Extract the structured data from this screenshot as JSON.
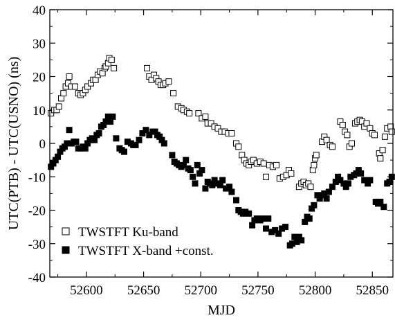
{
  "chart_data": {
    "type": "scatter",
    "xlabel": "MJD",
    "ylabel": "UTC(PTB) - UTC(USNO) (ns)",
    "xlim": [
      52568,
      52868
    ],
    "ylim": [
      -40,
      40
    ],
    "x_ticks": [
      52600,
      52650,
      52700,
      52750,
      52800,
      52850
    ],
    "x_tick_labels": [
      "52600",
      "52650",
      "52700",
      "52750",
      "52800",
      "52850"
    ],
    "y_ticks": [
      -40,
      -30,
      -20,
      -10,
      0,
      10,
      20,
      30,
      40
    ],
    "y_tick_labels": [
      "-40",
      "-30",
      "-20",
      "-10",
      "0",
      "10",
      "20",
      "30",
      "40"
    ],
    "grid": false,
    "legend_position": "bottom-left",
    "series": [
      {
        "name": "TWSTFT Ku-band",
        "marker": "open-square",
        "color": "#000000",
        "points": [
          [
            52569,
            9
          ],
          [
            52572,
            10
          ],
          [
            52574,
            10
          ],
          [
            52576,
            11
          ],
          [
            52578,
            13.5
          ],
          [
            52580,
            15
          ],
          [
            52582,
            17
          ],
          [
            52584,
            18
          ],
          [
            52585,
            20
          ],
          [
            52587,
            17
          ],
          [
            52590,
            17
          ],
          [
            52593,
            15
          ],
          [
            52595,
            14.5
          ],
          [
            52597,
            15
          ],
          [
            52599,
            16
          ],
          [
            52601,
            17
          ],
          [
            52604,
            18
          ],
          [
            52606,
            19
          ],
          [
            52608,
            19
          ],
          [
            52610,
            20.5
          ],
          [
            52612,
            21.5
          ],
          [
            52614,
            21
          ],
          [
            52616,
            22.5
          ],
          [
            52617,
            23
          ],
          [
            52619,
            24
          ],
          [
            52620,
            25.5
          ],
          [
            52622,
            25
          ],
          [
            52624,
            22.5
          ],
          [
            52653,
            22.5
          ],
          [
            52655,
            20
          ],
          [
            52657,
            19
          ],
          [
            52659,
            20.5
          ],
          [
            52661,
            19.5
          ],
          [
            52663,
            18.5
          ],
          [
            52665,
            17.5
          ],
          [
            52667,
            17.5
          ],
          [
            52669,
            18
          ],
          [
            52672,
            18.5
          ],
          [
            52676,
            15
          ],
          [
            52680,
            11
          ],
          [
            52683,
            10.5
          ],
          [
            52685,
            10
          ],
          [
            52688,
            9.5
          ],
          [
            52690,
            9
          ],
          [
            52698,
            9
          ],
          [
            52701,
            7.5
          ],
          [
            52704,
            8
          ],
          [
            52706,
            6
          ],
          [
            52709,
            6
          ],
          [
            52712,
            5
          ],
          [
            52715,
            4.5
          ],
          [
            52718,
            3.5
          ],
          [
            52721,
            3.5
          ],
          [
            52724,
            3
          ],
          [
            52727,
            3
          ],
          [
            52731,
            0
          ],
          [
            52733,
            -1
          ],
          [
            52736,
            -3.5
          ],
          [
            52738,
            -5
          ],
          [
            52740,
            -6
          ],
          [
            52742,
            -6.5
          ],
          [
            52744,
            -5.5
          ],
          [
            52746,
            -5
          ],
          [
            52749,
            -6
          ],
          [
            52752,
            -5.5
          ],
          [
            52755,
            -6
          ],
          [
            52757,
            -10
          ],
          [
            52760,
            -6.5
          ],
          [
            52763,
            -7
          ],
          [
            52766,
            -6.5
          ],
          [
            52769,
            -10.5
          ],
          [
            52772,
            -10
          ],
          [
            52775,
            -9.5
          ],
          [
            52777,
            -8
          ],
          [
            52779,
            -9
          ],
          [
            52786,
            -13
          ],
          [
            52788,
            -12
          ],
          [
            52790,
            -11.5
          ],
          [
            52792,
            -12.5
          ],
          [
            52794,
            -12
          ],
          [
            52796,
            -13
          ],
          [
            52798,
            -8
          ],
          [
            52799,
            -6.5
          ],
          [
            52800,
            -4.5
          ],
          [
            52801,
            -3.5
          ],
          [
            52806,
            0.5
          ],
          [
            52808,
            2
          ],
          [
            52810,
            1
          ],
          [
            52813,
            -0.5
          ],
          [
            52815,
            -1
          ],
          [
            52822,
            6.5
          ],
          [
            52824,
            5.5
          ],
          [
            52826,
            3.5
          ],
          [
            52828,
            2.5
          ],
          [
            52830,
            -1
          ],
          [
            52832,
            0
          ],
          [
            52835,
            6
          ],
          [
            52837,
            6.5
          ],
          [
            52839,
            7
          ],
          [
            52841,
            6.5
          ],
          [
            52843,
            5
          ],
          [
            52845,
            6
          ],
          [
            52848,
            4.5
          ],
          [
            52850,
            3
          ],
          [
            52852,
            2.5
          ],
          [
            52856,
            -3
          ],
          [
            52857,
            -4.5
          ],
          [
            52859,
            -2
          ],
          [
            52861,
            2
          ],
          [
            52863,
            4.5
          ],
          [
            52866,
            5
          ],
          [
            52867,
            3.5
          ]
        ]
      },
      {
        "name": "TWSTFT X-band +const.",
        "marker": "filled-square",
        "color": "#000000",
        "points": [
          [
            52569,
            -7
          ],
          [
            52571,
            -6
          ],
          [
            52573,
            -5
          ],
          [
            52575,
            -4
          ],
          [
            52577,
            -2.5
          ],
          [
            52579,
            -1.5
          ],
          [
            52581,
            -1
          ],
          [
            52583,
            0
          ],
          [
            52585,
            4
          ],
          [
            52587,
            0
          ],
          [
            52589,
            0.5
          ],
          [
            52591,
            0.5
          ],
          [
            52593,
            -1.5
          ],
          [
            52595,
            -1.5
          ],
          [
            52597,
            -1
          ],
          [
            52599,
            -1.5
          ],
          [
            52601,
            0
          ],
          [
            52603,
            1
          ],
          [
            52605,
            1.5
          ],
          [
            52607,
            1
          ],
          [
            52609,
            2.5
          ],
          [
            52611,
            3
          ],
          [
            52613,
            5
          ],
          [
            52615,
            5.5
          ],
          [
            52617,
            6.5
          ],
          [
            52619,
            8
          ],
          [
            52621,
            6.5
          ],
          [
            52623,
            8
          ],
          [
            52626,
            1.5
          ],
          [
            52629,
            -1.5
          ],
          [
            52631,
            -2
          ],
          [
            52633,
            -2.5
          ],
          [
            52636,
            0.5
          ],
          [
            52639,
            0
          ],
          [
            52641,
            -0.5
          ],
          [
            52643,
            -0.5
          ],
          [
            52646,
            1
          ],
          [
            52649,
            3
          ],
          [
            52652,
            4
          ],
          [
            52655,
            2.5
          ],
          [
            52658,
            3.5
          ],
          [
            52660,
            3.5
          ],
          [
            52662,
            2.5
          ],
          [
            52664,
            2
          ],
          [
            52666,
            1
          ],
          [
            52668,
            0
          ],
          [
            52675,
            -3.5
          ],
          [
            52677,
            -5.5
          ],
          [
            52679,
            -6
          ],
          [
            52681,
            -6.5
          ],
          [
            52683,
            -7
          ],
          [
            52685,
            -6.5
          ],
          [
            52687,
            -5
          ],
          [
            52689,
            -7.5
          ],
          [
            52691,
            -8
          ],
          [
            52693,
            -10
          ],
          [
            52695,
            -12
          ],
          [
            52697,
            -6.5
          ],
          [
            52699,
            -9
          ],
          [
            52701,
            -8
          ],
          [
            52704,
            -13.5
          ],
          [
            52706,
            -11.5
          ],
          [
            52708,
            -12
          ],
          [
            52710,
            -12.5
          ],
          [
            52712,
            -11
          ],
          [
            52715,
            -12
          ],
          [
            52717,
            -12.5
          ],
          [
            52719,
            -11
          ],
          [
            52722,
            -13.5
          ],
          [
            52725,
            -13
          ],
          [
            52727,
            -14.5
          ],
          [
            52731,
            -17
          ],
          [
            52733,
            -20
          ],
          [
            52735,
            -20.5
          ],
          [
            52737,
            -21
          ],
          [
            52739,
            -20.5
          ],
          [
            52742,
            -21
          ],
          [
            52745,
            -24.5
          ],
          [
            52747,
            -23
          ],
          [
            52749,
            -22.5
          ],
          [
            52752,
            -23
          ],
          [
            52754,
            -22.5
          ],
          [
            52757,
            -25.5
          ],
          [
            52759,
            -22.5
          ],
          [
            52762,
            -26.5
          ],
          [
            52765,
            -26
          ],
          [
            52768,
            -27
          ],
          [
            52771,
            -25.5
          ],
          [
            52774,
            -25
          ],
          [
            52778,
            -30.5
          ],
          [
            52780,
            -30
          ],
          [
            52782,
            -28
          ],
          [
            52784,
            -29.5
          ],
          [
            52786,
            -28
          ],
          [
            52788,
            -29
          ],
          [
            52791,
            -23.5
          ],
          [
            52793,
            -22
          ],
          [
            52795,
            -22.5
          ],
          [
            52797,
            -19.5
          ],
          [
            52799,
            -18.5
          ],
          [
            52802,
            -15.5
          ],
          [
            52804,
            -16.5
          ],
          [
            52806,
            -15.5
          ],
          [
            52808,
            -15
          ],
          [
            52810,
            -16.5
          ],
          [
            52812,
            -14.5
          ],
          [
            52815,
            -13
          ],
          [
            52818,
            -11.5
          ],
          [
            52820,
            -10
          ],
          [
            52822,
            -11
          ],
          [
            52825,
            -12
          ],
          [
            52827,
            -13
          ],
          [
            52829,
            -12
          ],
          [
            52831,
            -10
          ],
          [
            52834,
            -9.5
          ],
          [
            52836,
            -9
          ],
          [
            52838,
            -8
          ],
          [
            52840,
            -9
          ],
          [
            52843,
            -11
          ],
          [
            52846,
            -12
          ],
          [
            52848,
            -11
          ],
          [
            52853,
            -17.5
          ],
          [
            52855,
            -18
          ],
          [
            52857,
            -17.5
          ],
          [
            52860,
            -19
          ],
          [
            52863,
            -12
          ],
          [
            52865,
            -11.5
          ],
          [
            52867,
            -10
          ]
        ]
      }
    ]
  },
  "legend": {
    "ku_label": "TWSTFT Ku-band",
    "x_label": "TWSTFT X-band +const."
  },
  "axes": {
    "xlabel": "MJD",
    "ylabel": "UTC(PTB) - UTC(USNO) (ns)"
  }
}
